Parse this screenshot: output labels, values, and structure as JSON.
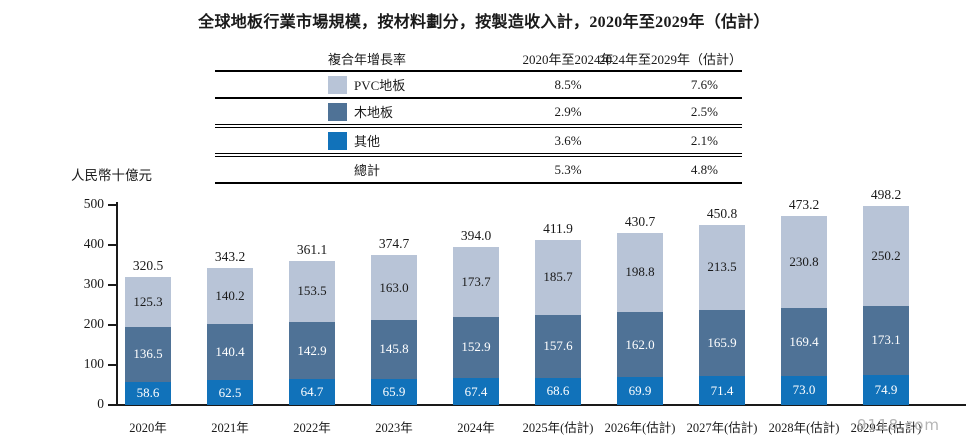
{
  "title": "全球地板行業市場規模，按材料劃分，按製造收入計，2020年至2029年（估計）",
  "watermark": "9118.com",
  "table": {
    "header": [
      "複合年增長率",
      "2020年至2024年",
      "2024年至2029年（估計）"
    ],
    "rows": [
      {
        "label": "PVC地板",
        "color": "#b8c4d7",
        "v1": "8.5%",
        "v2": "7.6%"
      },
      {
        "label": "木地板",
        "color": "#4f7296",
        "v1": "2.9%",
        "v2": "2.5%"
      },
      {
        "label": "其他",
        "color": "#1172ba",
        "v1": "3.6%",
        "v2": "2.1%"
      },
      {
        "label": "總計",
        "color": null,
        "v1": "5.3%",
        "v2": "4.8%"
      }
    ]
  },
  "chart_data": {
    "type": "bar",
    "stacked": true,
    "title": "全球地板行業市場規模，按材料劃分，按製造收入計，2020年至2029年（估計）",
    "unit_label": "人民幣十億元",
    "ylabel": "人民幣十億元",
    "xlabel": "",
    "ylim": [
      0,
      500
    ],
    "yticks": [
      0,
      100,
      200,
      300,
      400,
      500
    ],
    "grid": false,
    "legend_position": "table-top",
    "categories": [
      "2020年",
      "2021年",
      "2022年",
      "2023年",
      "2024年",
      "2025年(估計)",
      "2026年(估計)",
      "2027年(估計)",
      "2028年(估計)",
      "2029年(估計)"
    ],
    "series": [
      {
        "name": "其他",
        "color": "#1172ba",
        "label_color": "#ffffff",
        "values": [
          "58.6",
          "62.5",
          "64.7",
          "65.9",
          "67.4",
          "68.6",
          "69.9",
          "71.4",
          "73.0",
          "74.9"
        ]
      },
      {
        "name": "木地板",
        "color": "#4f7296",
        "label_color": "#ffffff",
        "values": [
          "136.5",
          "140.4",
          "142.9",
          "145.8",
          "152.9",
          "157.6",
          "162.0",
          "165.9",
          "169.4",
          "173.1"
        ]
      },
      {
        "name": "PVC地板",
        "color": "#b8c4d7",
        "label_color": "#1a1a1a",
        "values": [
          "125.3",
          "140.2",
          "153.5",
          "163.0",
          "173.7",
          "185.7",
          "198.8",
          "213.5",
          "230.8",
          "250.2"
        ]
      }
    ],
    "totals": [
      "320.5",
      "343.2",
      "361.1",
      "374.7",
      "394.0",
      "411.9",
      "430.7",
      "450.8",
      "473.2",
      "498.2"
    ]
  }
}
